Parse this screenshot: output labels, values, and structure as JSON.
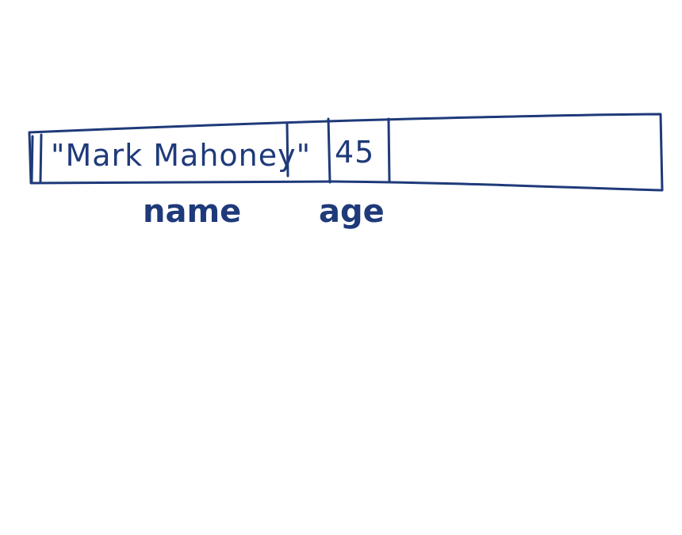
{
  "diagram": {
    "cells": [
      {
        "value": "\"Mark Mahoney\"",
        "label": "name"
      },
      {
        "value": "45",
        "label": "age"
      }
    ],
    "ink_color": "#1f3a7a",
    "background_color": "#ffffff"
  }
}
